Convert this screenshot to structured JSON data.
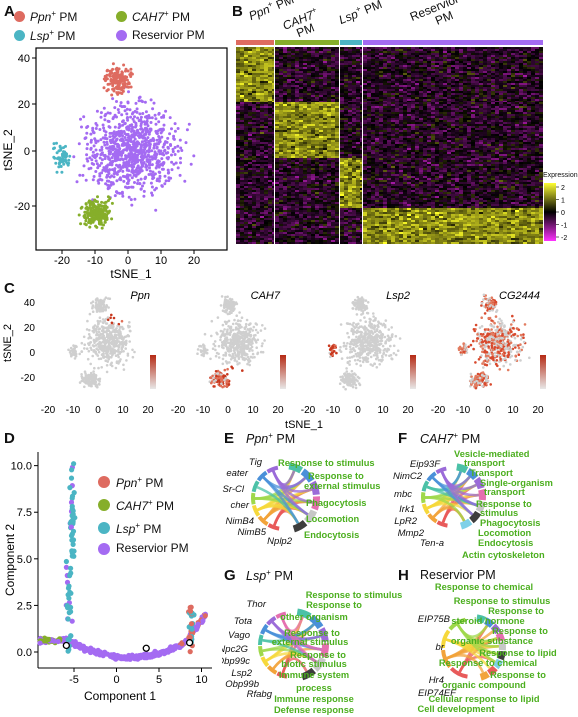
{
  "panels": {
    "A": "A",
    "B": "B",
    "C": "C",
    "D": "D",
    "E": "E",
    "F": "F",
    "G": "G",
    "H": "H"
  },
  "colors": {
    "ppn": "#de6b60",
    "cah7": "#86ae2a",
    "lsp": "#4bb5c4",
    "reservoir": "#a46bf2",
    "go_term": "#4caf1f"
  },
  "legend": {
    "ppn": {
      "name": "Ppn",
      "sup": "+",
      "suffix": " PM"
    },
    "cah7": {
      "name": "CAH7",
      "sup": "+",
      "suffix": " PM"
    },
    "lsp": {
      "name": "Lsp",
      "sup": "+",
      "suffix": " PM"
    },
    "reservoir": {
      "name": "Reservior PM"
    }
  },
  "panelA": {
    "xlabel": "tSNE_1",
    "ylabel": "tSNE_2",
    "xticks": [
      "-20",
      "-10",
      "0",
      "10",
      "20"
    ],
    "yticks": [
      "40",
      "20",
      "0",
      "-20"
    ]
  },
  "panelB": {
    "column_labels": [
      {
        "name": "Ppn",
        "sup": "+",
        "suffix": " PM"
      },
      {
        "name": "CAH7",
        "sup": "+",
        "suffix": " PM"
      },
      {
        "name": "Lsp",
        "sup": "+",
        "suffix": " PM"
      },
      {
        "name": "Reservior",
        "line2": "PM"
      }
    ],
    "colorbar_title": "Expression",
    "colorbar_ticks": [
      "2",
      "1",
      "0",
      "-1",
      "-2"
    ]
  },
  "panelC": {
    "genes": [
      "Ppn",
      "CAH7",
      "Lsp2",
      "CG2444"
    ],
    "xlabel": "tSNE_1",
    "ylabel": "tSNE_2",
    "xticks": [
      "-20",
      "-10",
      "0",
      "10",
      "20"
    ],
    "yticks": [
      "40",
      "20",
      "0",
      "-20"
    ]
  },
  "panelD": {
    "xlabel": "Component 1",
    "ylabel": "Component 2",
    "xticks": [
      "-5",
      "0",
      "5",
      "10"
    ],
    "yticks": [
      "10.0",
      "7.5",
      "5.0",
      "2.5",
      "0.0"
    ],
    "legend": [
      {
        "name": "Ppn",
        "sup": "+",
        "suffix": " PM"
      },
      {
        "name": "CAH7",
        "sup": "+",
        "suffix": " PM"
      },
      {
        "name": "Lsp",
        "sup": "+",
        "suffix": " PM"
      },
      {
        "name": "Reservior PM"
      }
    ]
  },
  "panelE": {
    "title": {
      "name": "Ppn",
      "sup": "+",
      "suffix": " PM"
    },
    "genes": [
      "Tig",
      "eater",
      "Sr-Cl",
      "cher",
      "NimB4",
      "NimB5",
      "Nplp2"
    ],
    "terms": [
      "Response to stimulus",
      "Response to",
      "external stimulus",
      "Phagocytosis",
      "Locomotion",
      "Endocytosis"
    ]
  },
  "panelF": {
    "title": {
      "name": "CAH7",
      "sup": "+",
      "suffix": " PM"
    },
    "genes": [
      "Eip93F",
      "NimC2",
      "mbc",
      "Irk1",
      "LpR2",
      "Mmp2",
      "Ten-a"
    ],
    "terms": [
      "Vesicle-mediated",
      "transport",
      "Transport",
      "Single-organism",
      "transport",
      "Response to",
      "stimulus",
      "Phagocytosis",
      "Locomotion",
      "Endocytosis",
      "Actin cytoskeleton"
    ]
  },
  "panelG": {
    "title": {
      "name": "Lsp",
      "sup": "+",
      "suffix": " PM"
    },
    "genes": [
      "Thor",
      "Tota",
      "Vago",
      "Npc2G",
      "Obp99c",
      "Lsp2",
      "Obp99b",
      "Rfabg"
    ],
    "terms": [
      "Response to stimulus",
      "Response to",
      "other organism",
      "Response to",
      "external stimulus",
      "Response to",
      "biotic stimulus",
      "Immune system",
      "process",
      "Immune response",
      "Defense response"
    ]
  },
  "panelH": {
    "title": "Reservior PM",
    "genes": [
      "EIP75B",
      "br",
      "Hr4",
      "EIP74EF"
    ],
    "terms": [
      "Response to chemical",
      "Response to stimulus",
      "Response to",
      "steroid hormone",
      "Response to",
      "organic substance",
      "Response to lipid",
      "Response to chemical",
      "Response to",
      "organic compound",
      "Cellular response to lipid",
      "Cell development"
    ]
  }
}
